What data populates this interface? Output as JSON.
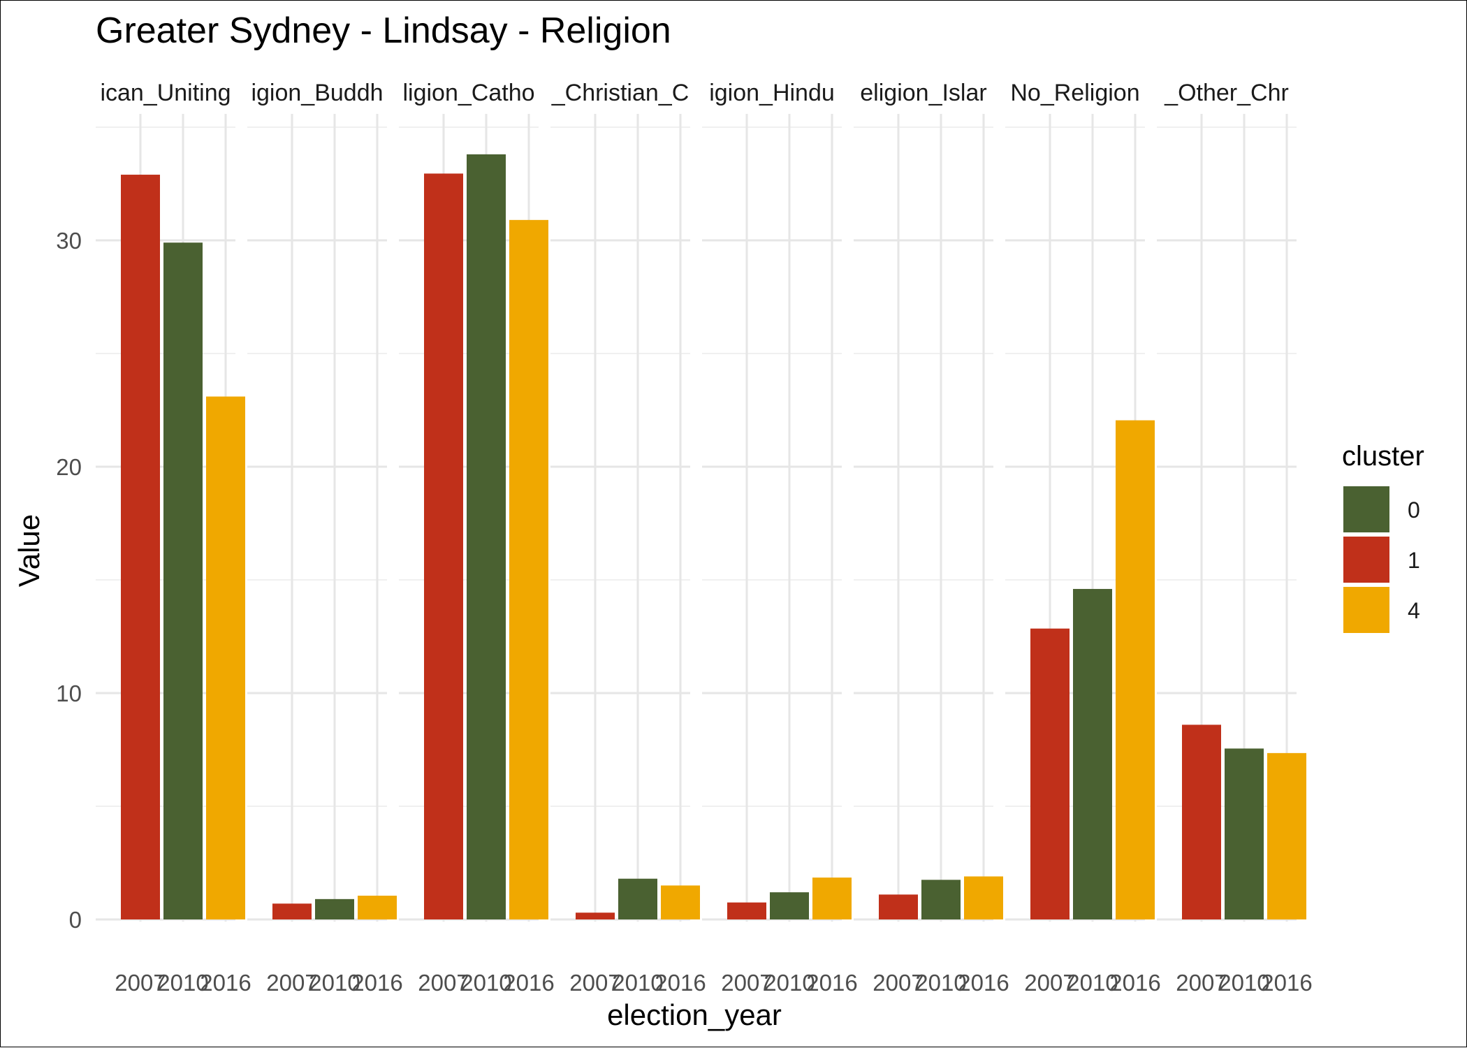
{
  "chart_data": {
    "type": "bar",
    "title": "Greater Sydney - Lindsay - Religion",
    "xlabel": "election_year",
    "ylabel": "Value",
    "ylim": [
      0,
      35
    ],
    "y_ticks": [
      0,
      10,
      20,
      30
    ],
    "grid": true,
    "legend": {
      "title": "cluster",
      "position": "right",
      "items": [
        {
          "label": "0",
          "color": "#4a6131"
        },
        {
          "label": "1",
          "color": "#c0301a"
        },
        {
          "label": "4",
          "color": "#f0a800"
        }
      ]
    },
    "x_categories": [
      "2007",
      "2010",
      "2016"
    ],
    "x_tick_labels": [
      "2007",
      "2010",
      "2016"
    ],
    "bar_clusters": [
      "1",
      "0",
      "4"
    ],
    "facets": [
      {
        "label": "ican_Uniting",
        "values": [
          32.9,
          29.9,
          23.1
        ]
      },
      {
        "label": "igion_Buddh",
        "values": [
          0.7,
          0.9,
          1.05
        ]
      },
      {
        "label": "ligion_Catho",
        "values": [
          32.95,
          33.8,
          30.9
        ]
      },
      {
        "label": "_Christian_C",
        "values": [
          0.3,
          1.8,
          1.5
        ]
      },
      {
        "label": "igion_Hindu",
        "values": [
          0.75,
          1.2,
          1.85
        ]
      },
      {
        "label": "eligion_Islar",
        "values": [
          1.1,
          1.75,
          1.9
        ]
      },
      {
        "label": "No_Religion",
        "values": [
          12.85,
          14.6,
          22.05
        ]
      },
      {
        "label": "_Other_Chr",
        "values": [
          8.6,
          7.55,
          7.35
        ]
      }
    ]
  }
}
